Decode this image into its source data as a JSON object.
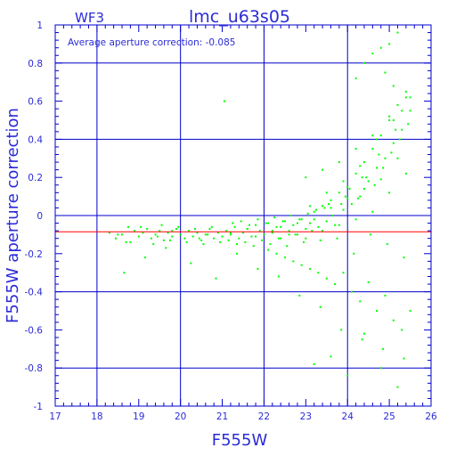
{
  "chart_data": {
    "type": "scatter",
    "title": "lmc_u63s05",
    "chip_label": "WF3",
    "xlabel": "F555W",
    "ylabel": "F555W aperture correction",
    "annotation": "Average aperture correction: -0.085",
    "average_correction": -0.085,
    "xlim": [
      17,
      26
    ],
    "ylim": [
      -1,
      1
    ],
    "x_ticks": [
      17,
      18,
      19,
      20,
      21,
      22,
      23,
      24,
      25,
      26
    ],
    "x_tick_labels": [
      "17",
      "18",
      "19",
      "20",
      "21",
      "22",
      "23",
      "24",
      "25",
      "26"
    ],
    "y_ticks": [
      -1,
      -0.8,
      -0.6,
      -0.4,
      -0.2,
      0,
      0.2,
      0.4,
      0.6,
      0.8,
      1
    ],
    "y_tick_labels": [
      "-1",
      "-0.8",
      "-0.6",
      "-0.4",
      "-0.2",
      "0",
      "0.2",
      "0.4",
      "0.6",
      "0.8",
      "1"
    ],
    "grid": true,
    "colors": {
      "frame": "#0000cc",
      "points": "#00ff00",
      "average_line": "#ff0000",
      "text": "#2b2bd6"
    },
    "series": [
      {
        "x": [
          18.3,
          18.45,
          18.6,
          18.75,
          18.9,
          19.0,
          19.1,
          19.2,
          19.3,
          19.4,
          19.5,
          19.6,
          19.7,
          19.8,
          19.9,
          20.0,
          20.1,
          20.2,
          20.3,
          20.4,
          20.5,
          20.6,
          20.7,
          20.8,
          20.9,
          21.0,
          21.1,
          21.2,
          21.3,
          21.4,
          21.5,
          21.6,
          21.7,
          21.8,
          21.9,
          22.0,
          22.1,
          22.2,
          22.3,
          22.4,
          22.5,
          22.6,
          22.7,
          22.8,
          22.9,
          23.0,
          23.1,
          23.2,
          23.3,
          23.4,
          23.5,
          23.6,
          23.7,
          23.8,
          23.9,
          24.0,
          24.1,
          24.2,
          24.3,
          24.4,
          24.5,
          24.6,
          24.7,
          24.8,
          24.9,
          25.0,
          25.1,
          25.2,
          25.3,
          25.4,
          25.5,
          18.8,
          19.05,
          19.35,
          19.55,
          19.75,
          19.95,
          20.15,
          20.35,
          20.55,
          20.75,
          20.95,
          21.15,
          21.35,
          21.55,
          21.75,
          21.95,
          22.15,
          22.35,
          22.55,
          22.75,
          22.95,
          23.15,
          23.35,
          23.55,
          23.75,
          23.95,
          24.15,
          24.35,
          24.55,
          24.75,
          24.95,
          25.15,
          25.35,
          21.05,
          21.25,
          21.45,
          21.65,
          21.85,
          22.05,
          22.25,
          22.45,
          22.65,
          22.85,
          23.05,
          23.25,
          23.45,
          23.65,
          23.85,
          24.05,
          24.25,
          24.45,
          24.65,
          24.85,
          25.05,
          25.25,
          25.45,
          22.1,
          22.3,
          22.5,
          22.7,
          22.9,
          23.1,
          23.3,
          23.5,
          23.7,
          23.9,
          24.1,
          24.3,
          24.5,
          24.7,
          24.9,
          25.1,
          25.3,
          25.5,
          18.65,
          19.15,
          19.65,
          20.25,
          20.85,
          21.35,
          21.85,
          22.35,
          22.85,
          23.35,
          23.85,
          24.35,
          24.85,
          25.35,
          23.2,
          23.6,
          24.0,
          24.4,
          24.8,
          25.2,
          23.0,
          23.4,
          23.8,
          24.2,
          24.6,
          25.0,
          25.4,
          24.2,
          24.4,
          24.6,
          24.8,
          25.0,
          25.2,
          24.9,
          25.1,
          25.3,
          18.5,
          18.7,
          19.45,
          19.8,
          20.45,
          20.65,
          21.2,
          21.6,
          21.8,
          22.0,
          22.2,
          22.4,
          22.6,
          22.8,
          23.0,
          23.2,
          23.4,
          23.6,
          23.8,
          24.0,
          24.2,
          24.4,
          24.6,
          24.8,
          25.0,
          25.2,
          25.4,
          23.1,
          23.5,
          23.9,
          24.3,
          24.7,
          25.1,
          25.5
        ],
        "y": [
          -0.09,
          -0.12,
          -0.1,
          -0.06,
          -0.08,
          -0.11,
          -0.09,
          -0.07,
          -0.12,
          -0.1,
          -0.08,
          -0.13,
          -0.09,
          -0.11,
          -0.07,
          -0.1,
          -0.12,
          -0.08,
          -0.11,
          -0.09,
          -0.13,
          -0.1,
          -0.07,
          -0.12,
          -0.09,
          -0.11,
          -0.08,
          -0.1,
          -0.06,
          -0.12,
          -0.09,
          -0.07,
          -0.11,
          -0.05,
          -0.08,
          -0.1,
          -0.04,
          -0.09,
          -0.06,
          -0.12,
          -0.03,
          -0.08,
          -0.05,
          -0.1,
          -0.02,
          -0.07,
          -0.04,
          0.02,
          -0.06,
          0.05,
          -0.03,
          0.08,
          -0.05,
          0.12,
          0.03,
          0.15,
          0.06,
          0.22,
          0.1,
          0.28,
          0.18,
          0.35,
          0.25,
          0.42,
          0.3,
          0.5,
          0.38,
          0.58,
          0.45,
          0.65,
          0.55,
          -0.14,
          -0.06,
          -0.15,
          -0.05,
          -0.13,
          -0.06,
          -0.14,
          -0.07,
          -0.15,
          -0.06,
          -0.14,
          -0.13,
          -0.15,
          -0.14,
          -0.16,
          -0.13,
          -0.15,
          -0.12,
          -0.16,
          -0.1,
          -0.14,
          -0.08,
          -0.13,
          0.06,
          -0.12,
          0.1,
          -0.2,
          0.2,
          -0.1,
          0.32,
          -0.15,
          0.45,
          -0.22,
          0.6,
          -0.04,
          -0.03,
          -0.05,
          -0.02,
          -0.04,
          -0.01,
          -0.03,
          0.0,
          -0.02,
          0.01,
          0.03,
          0.04,
          0.0,
          0.06,
          0.14,
          0.09,
          0.2,
          0.16,
          0.25,
          0.33,
          0.4,
          0.48,
          -0.18,
          -0.2,
          -0.22,
          -0.24,
          -0.26,
          -0.28,
          -0.3,
          -0.33,
          -0.36,
          -0.3,
          -0.4,
          -0.45,
          -0.35,
          -0.5,
          -0.42,
          -0.55,
          -0.6,
          -0.5,
          -0.3,
          -0.22,
          -0.17,
          -0.25,
          -0.33,
          -0.2,
          -0.28,
          -0.32,
          -0.42,
          -0.48,
          -0.6,
          -0.65,
          -0.7,
          -0.75,
          -0.78,
          -0.74,
          -0.84,
          -0.62,
          -0.8,
          -0.9,
          0.2,
          0.24,
          0.28,
          0.35,
          0.42,
          0.52,
          0.62,
          0.72,
          0.8,
          0.85,
          0.88,
          0.9,
          0.96,
          0.75,
          0.68,
          0.55,
          -0.1,
          -0.14,
          -0.11,
          -0.08,
          -0.12,
          -0.1,
          -0.09,
          -0.07,
          -0.11,
          -0.1,
          -0.08,
          -0.06,
          -0.1,
          -0.04,
          -0.12,
          -0.02,
          -0.08,
          0.04,
          -0.05,
          0.09,
          -0.02,
          0.14,
          0.02,
          0.19,
          0.12,
          0.3,
          0.22,
          0.05,
          0.12,
          0.18,
          0.26,
          0.4,
          0.5,
          0.62
        ]
      }
    ]
  }
}
